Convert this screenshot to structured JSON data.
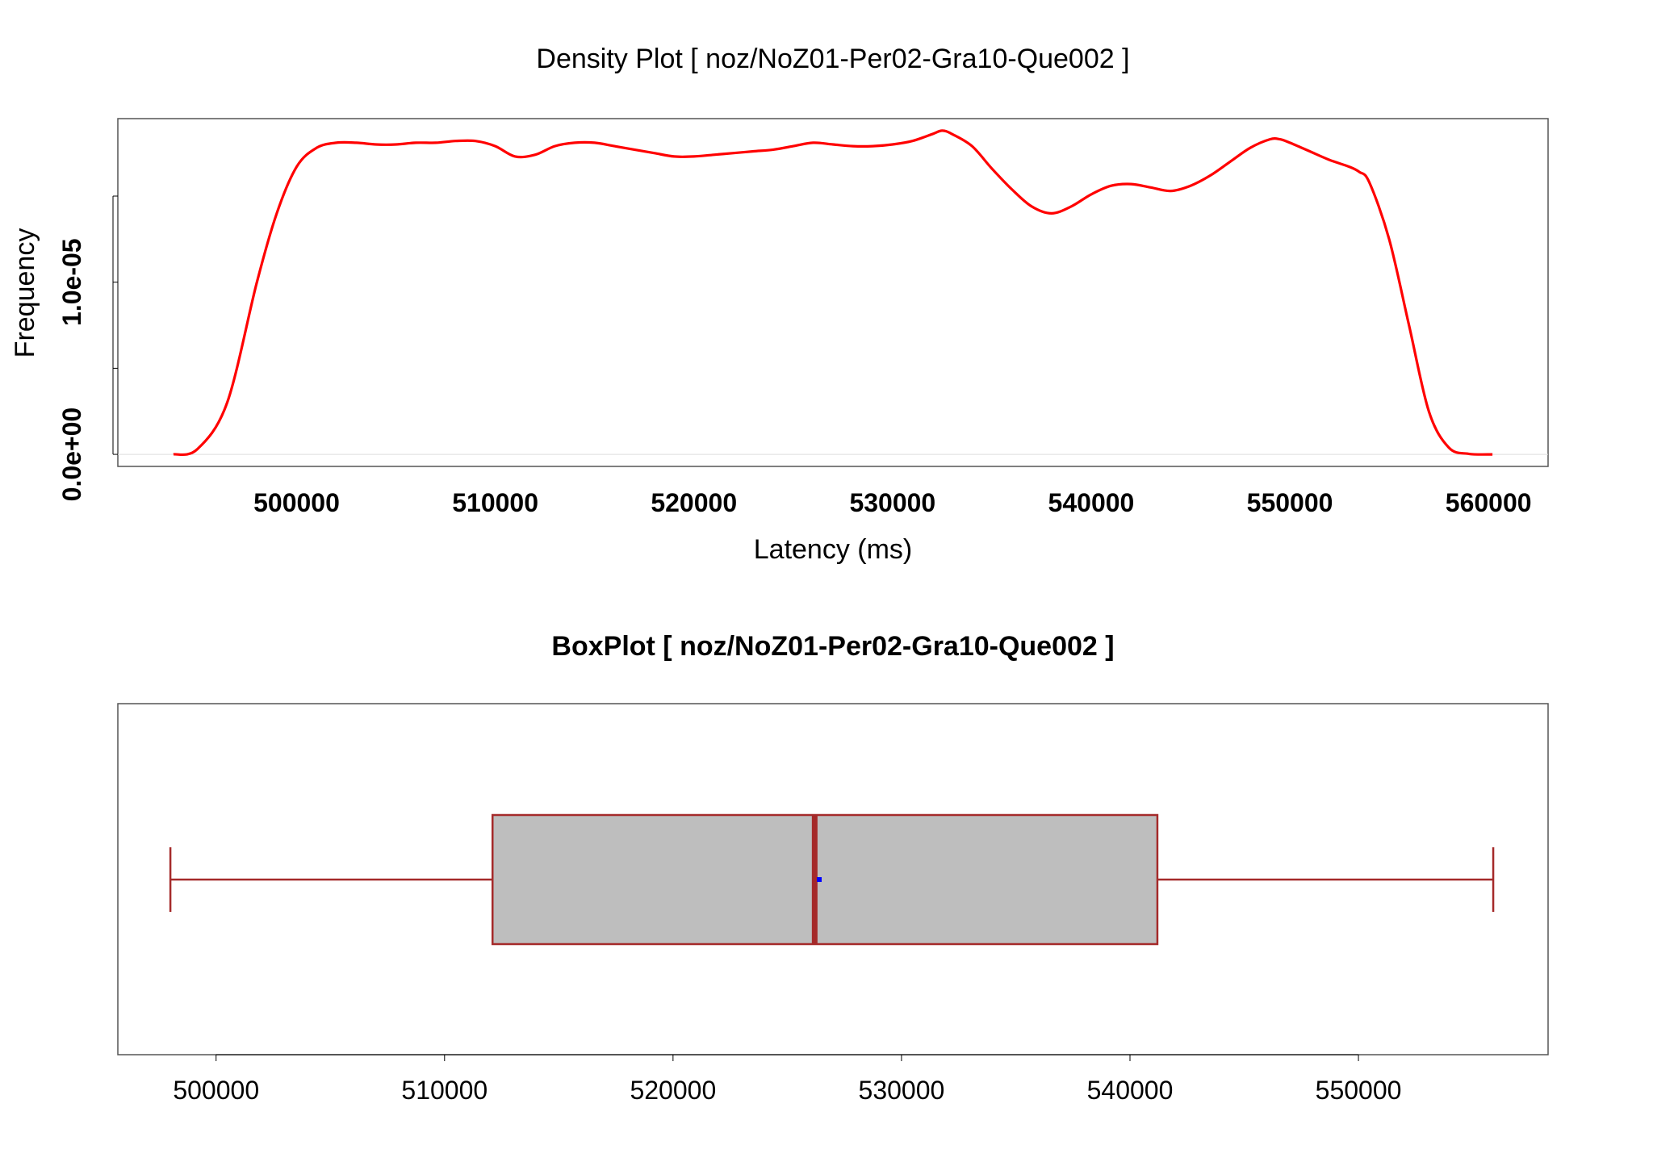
{
  "chart_data": [
    {
      "type": "line",
      "title": "Density Plot [ noz/NoZ01-Per02-Gra10-Que002 ]",
      "xlabel": "Latency (ms)",
      "ylabel": "Frequency",
      "xlim": [
        491000,
        563000
      ],
      "ylim": [
        -7e-07,
        1.95e-05
      ],
      "x_ticks": [
        500000,
        510000,
        520000,
        530000,
        540000,
        550000,
        560000
      ],
      "x_tick_labels": [
        "500000",
        "510000",
        "520000",
        "530000",
        "540000",
        "550000",
        "560000"
      ],
      "y_ticks": [
        0,
        5e-06,
        1e-05,
        1.5e-05
      ],
      "y_tick_labels": [
        "0.0e+00",
        "",
        "1.0e-05",
        ""
      ],
      "grid": false,
      "color": "#ff0000",
      "series": [
        {
          "x": [
            493800,
            495000,
            496500,
            498000,
            499000,
            500000,
            501000,
            502000,
            503000,
            504000,
            505000,
            506000,
            507000,
            508000,
            509000,
            510000,
            511000,
            512000,
            513000,
            514000,
            515000,
            516000,
            517000,
            518000,
            519000,
            520000,
            521000,
            522000,
            523000,
            524000,
            525000,
            526000,
            527000,
            528000,
            529000,
            530000,
            531000,
            532000,
            532500,
            533000,
            534000,
            535000,
            536000,
            537000,
            538000,
            539000,
            540000,
            541000,
            542000,
            543000,
            544000,
            545000,
            546000,
            547000,
            548000,
            549000,
            549500,
            550000,
            551000,
            552000,
            553000,
            553500,
            554000,
            555000,
            556000,
            557000,
            558000,
            559000,
            560200
          ],
          "values": [
            0.0,
            3e-07,
            3e-06,
            1e-05,
            1.4e-05,
            1.67e-05,
            1.78e-05,
            1.81e-05,
            1.81e-05,
            1.8e-05,
            1.8e-05,
            1.81e-05,
            1.81e-05,
            1.82e-05,
            1.82e-05,
            1.79e-05,
            1.73e-05,
            1.74e-05,
            1.79e-05,
            1.81e-05,
            1.81e-05,
            1.79e-05,
            1.77e-05,
            1.75e-05,
            1.73e-05,
            1.73e-05,
            1.74e-05,
            1.75e-05,
            1.76e-05,
            1.77e-05,
            1.79e-05,
            1.81e-05,
            1.8e-05,
            1.79e-05,
            1.79e-05,
            1.8e-05,
            1.82e-05,
            1.86e-05,
            1.88e-05,
            1.86e-05,
            1.79e-05,
            1.66e-05,
            1.54e-05,
            1.44e-05,
            1.4e-05,
            1.44e-05,
            1.51e-05,
            1.56e-05,
            1.57e-05,
            1.55e-05,
            1.53e-05,
            1.56e-05,
            1.62e-05,
            1.7e-05,
            1.78e-05,
            1.83e-05,
            1.83e-05,
            1.81e-05,
            1.76e-05,
            1.71e-05,
            1.67e-05,
            1.64e-05,
            1.58e-05,
            1.25e-05,
            7.5e-06,
            2.5e-06,
            4e-07,
            3e-08,
            0.0
          ]
        }
      ]
    },
    {
      "type": "box",
      "title": "BoxPlot [ noz/NoZ01-Per02-Gra10-Que002 ]",
      "xlim": [
        495700,
        558300
      ],
      "x_ticks": [
        500000,
        510000,
        520000,
        530000,
        540000,
        550000
      ],
      "x_tick_labels": [
        "500000",
        "510000",
        "520000",
        "530000",
        "540000",
        "550000"
      ],
      "whisker_low": 498000,
      "q1": 512100,
      "median": 526200,
      "q3": 541200,
      "whisker_high": 555900,
      "mean": 526400,
      "box_color": "#bebebe",
      "border_color": "#a52a2a",
      "mean_color": "#0000ff"
    }
  ]
}
